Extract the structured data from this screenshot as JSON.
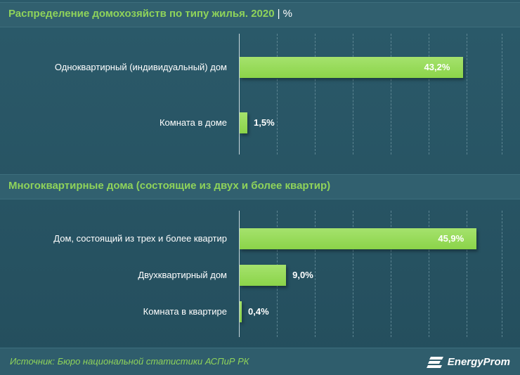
{
  "header1": {
    "title": "Распределение домохозяйств по типу жилья. 2020",
    "unit": "| %"
  },
  "header2": {
    "title": "Многоквартирные дома (состоящие из двух и более квартир)"
  },
  "footer": {
    "source": "Источник: Бюро национальной  статистики АСПиР РК",
    "logo": "EnergyProm"
  },
  "colors": {
    "bar": "#8bd449",
    "accent_text": "#8fd35a",
    "background": "#2a5565"
  },
  "chart_data": [
    {
      "type": "bar",
      "orientation": "horizontal",
      "title": "Распределение домохозяйств по типу жилья. 2020",
      "unit": "%",
      "categories": [
        "Одноквартирный (индивидуальный) дом",
        "Комната в доме"
      ],
      "values": [
        43.2,
        1.5
      ],
      "value_labels": [
        "43,2%",
        "1,5%"
      ],
      "xlim": [
        0,
        50
      ],
      "grid": true
    },
    {
      "type": "bar",
      "orientation": "horizontal",
      "title": "Многоквартирные дома (состоящие из двух и более квартир)",
      "unit": "%",
      "categories": [
        "Дом, состоящий из трех и более квартир",
        "Двухквартирный дом",
        "Комната в квартире"
      ],
      "values": [
        45.9,
        9.0,
        0.4
      ],
      "value_labels": [
        "45,9%",
        "9,0%",
        "0,4%"
      ],
      "xlim": [
        0,
        50
      ],
      "grid": true
    }
  ]
}
